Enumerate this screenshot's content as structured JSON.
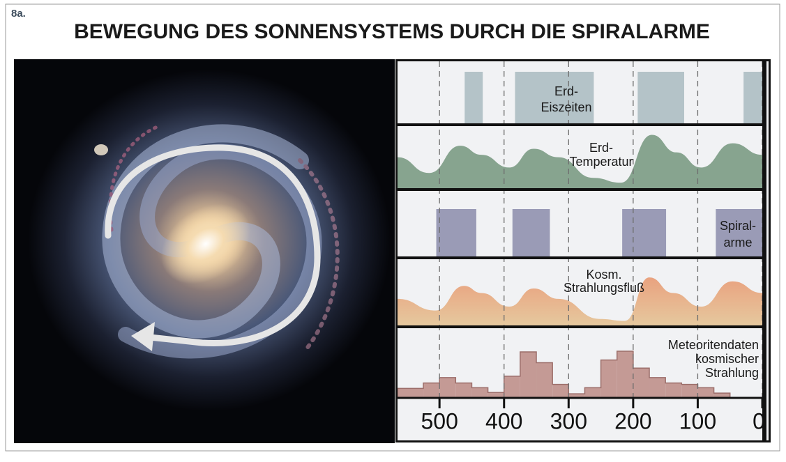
{
  "figure_label": "8a.",
  "title": "BEWEGUNG DES SONNENSYSTEMS DURCH DIE SPIRALARME",
  "chart_data": [
    {
      "type": "interval",
      "label": [
        "Erd-",
        "Eiszeiten"
      ],
      "color": "#b4c3c8",
      "intervals": [
        [
          461,
          433
        ],
        [
          383,
          261
        ],
        [
          193,
          121
        ],
        [
          29,
          0
        ]
      ]
    },
    {
      "type": "area",
      "label": [
        "Erd-",
        "Temperatur"
      ],
      "color": "#87a48f",
      "x": [
        565,
        516,
        468,
        435,
        392,
        354,
        316,
        262,
        219,
        171,
        133,
        95,
        46,
        0
      ],
      "values": [
        51,
        25,
        70,
        55,
        34,
        65,
        51,
        17,
        9,
        88,
        59,
        34,
        74,
        55
      ],
      "ylim": [
        0,
        100
      ]
    },
    {
      "type": "interval",
      "label": [
        "Spiral-",
        "arme"
      ],
      "color": "#9a9bb6",
      "intervals": [
        [
          505,
          443
        ],
        [
          387,
          329
        ],
        [
          217,
          149
        ],
        [
          72,
          0
        ]
      ]
    },
    {
      "type": "area",
      "label": [
        "Kosm.",
        "Strahlungsfluß"
      ],
      "color": "#e6ad86",
      "x": [
        565,
        506,
        462,
        435,
        392,
        354,
        316,
        251,
        213,
        175,
        138,
        95,
        46,
        0
      ],
      "values": [
        41,
        23,
        61,
        50,
        29,
        57,
        41,
        10,
        7,
        74,
        50,
        29,
        68,
        50
      ],
      "ylim": [
        0,
        100
      ]
    },
    {
      "type": "histogram",
      "label": [
        "Meteoritendaten",
        "kosmischer",
        "Strahlung"
      ],
      "color": "#c49a95",
      "bins": [
        565,
        525,
        500,
        475,
        450,
        425,
        400,
        375,
        350,
        325,
        300,
        275,
        250,
        225,
        200,
        175,
        150,
        125,
        100,
        75,
        50
      ],
      "counts": [
        13,
        21,
        29,
        21,
        14,
        7,
        31,
        67,
        51,
        19,
        5,
        14,
        55,
        68,
        43,
        29,
        21,
        19,
        14,
        6
      ],
      "ylim": [
        0,
        100
      ],
      "xlim": [
        565,
        0
      ],
      "xticks": [
        500,
        400,
        300,
        200,
        100,
        0
      ],
      "grid": true
    }
  ]
}
